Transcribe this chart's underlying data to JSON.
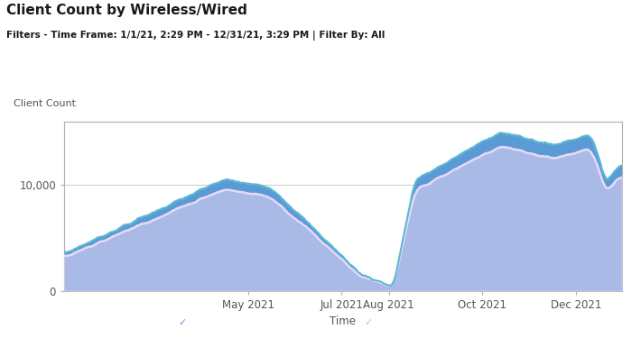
{
  "title": "Client Count by Wireless/Wired",
  "subtitle": "Filters - Time Frame: 1/1/21, 2:29 PM - 12/31/21, 3:29 PM | Filter By: All",
  "ylabel": "Client Count",
  "xlabel": "Time",
  "ylim": [
    0,
    16000
  ],
  "yticks": [
    0,
    10000
  ],
  "ytick_labels": [
    "0",
    "10,000"
  ],
  "background_color": "#ffffff",
  "plot_bg_color": "#ffffff",
  "associated_fill_color": "#5b9bd5",
  "authenticated_fill_color": "#c8b8e8",
  "associated_line_color": "#5bb8d4",
  "authenticated_line_color": "#e8d8f8",
  "grid_color": "#d0d0d0",
  "border_color": "#b0b0b0",
  "months_labels": [
    "May 2021",
    "Jul 2021",
    "Aug 2021",
    "Oct 2021",
    "Dec 2021"
  ],
  "months_days": [
    120,
    181,
    212,
    273,
    334
  ],
  "n_points": 365
}
